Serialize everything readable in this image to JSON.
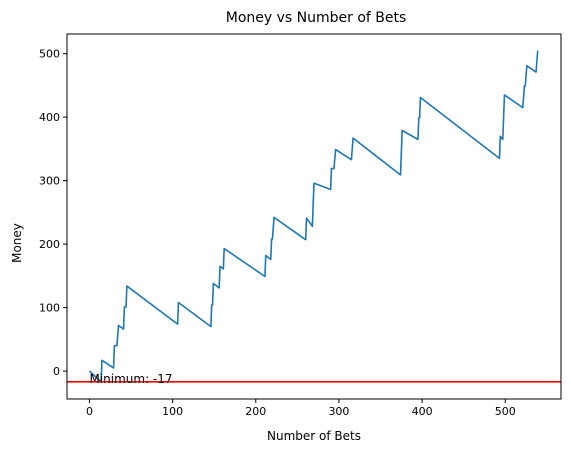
{
  "chart_data": {
    "type": "line",
    "title": "Money vs Number of Bets",
    "xlabel": "Number of Bets",
    "ylabel": "Money",
    "xlim": [
      -27,
      567
    ],
    "ylim": [
      -44,
      531
    ],
    "xticks": [
      0,
      100,
      200,
      300,
      400,
      500
    ],
    "yticks": [
      0,
      100,
      200,
      300,
      400,
      500
    ],
    "grid": false,
    "series": [
      {
        "color": "#1f77b4",
        "points": [
          [
            0,
            0
          ],
          [
            14,
            -17
          ],
          [
            15,
            17
          ],
          [
            29,
            5
          ],
          [
            30,
            40
          ],
          [
            33,
            40
          ],
          [
            35,
            72
          ],
          [
            41,
            66
          ],
          [
            42,
            101
          ],
          [
            44,
            101
          ],
          [
            45,
            134
          ],
          [
            106,
            74
          ],
          [
            107,
            108
          ],
          [
            146,
            70
          ],
          [
            147,
            104
          ],
          [
            148,
            104
          ],
          [
            149,
            138
          ],
          [
            156,
            131
          ],
          [
            157,
            165
          ],
          [
            161,
            161
          ],
          [
            162,
            193
          ],
          [
            211,
            149
          ],
          [
            212,
            182
          ],
          [
            218,
            176
          ],
          [
            219,
            208
          ],
          [
            220,
            208
          ],
          [
            222,
            242
          ],
          [
            260,
            207
          ],
          [
            261,
            241
          ],
          [
            268,
            228
          ],
          [
            270,
            296
          ],
          [
            290,
            286
          ],
          [
            291,
            319
          ],
          [
            294,
            319
          ],
          [
            296,
            349
          ],
          [
            315,
            333
          ],
          [
            317,
            367
          ],
          [
            374,
            309
          ],
          [
            376,
            379
          ],
          [
            395,
            365
          ],
          [
            396,
            399
          ],
          [
            397,
            399
          ],
          [
            398,
            431
          ],
          [
            493,
            335
          ],
          [
            494,
            370
          ],
          [
            497,
            365
          ],
          [
            499,
            435
          ],
          [
            521,
            415
          ],
          [
            523,
            449
          ],
          [
            524,
            449
          ],
          [
            526,
            481
          ],
          [
            537,
            471
          ],
          [
            539,
            505
          ]
        ]
      }
    ],
    "reference_line": {
      "y": -17,
      "color": "#ff0000"
    },
    "annotation": {
      "text": "Minimum: -17",
      "x": 0,
      "y": -17
    }
  }
}
